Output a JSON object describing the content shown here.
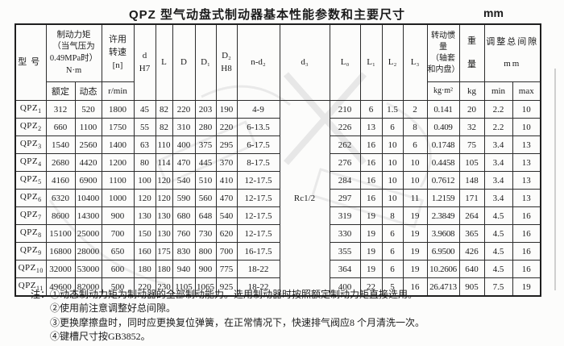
{
  "title": "QPZ 型气动盘式制动器基本性能参数和主要尺寸",
  "unit": "mm",
  "table": {
    "headers": {
      "model": "型号",
      "torque": "制动力矩\n（当气压为\n0.49MPa时）\nN·m",
      "rated": "额定",
      "dynamic": "动态",
      "speed": "许用\n转速\n[n]",
      "speed_unit": "r/min",
      "d": "d\nH7",
      "L": "L",
      "D": "D",
      "D1": "D₁",
      "D2": "D₂\nH8",
      "nd2": "n-d₂",
      "d3": "d₃",
      "L0": "L₀",
      "L1": "L₁",
      "L2": "L₂",
      "L3": "L₃",
      "inertia": "转动惯量\n（轴套\n和内盘）",
      "inertia_unit": "kg·m²",
      "weight": "重\n量",
      "weight_unit": "kg",
      "gap": "调整总间隙\nmm",
      "gap_min": "min",
      "gap_max": "max"
    },
    "d3_value": "Rc1/2",
    "rows": [
      {
        "model": "QPZ",
        "sub": "1",
        "values": [
          "312",
          "520",
          "1800",
          "45",
          "82",
          "220",
          "203",
          "190",
          "4-9",
          "210",
          "6",
          "1.5",
          "2",
          "0.141",
          "20",
          "2.2",
          "10"
        ]
      },
      {
        "model": "QPZ",
        "sub": "2",
        "values": [
          "660",
          "1100",
          "1750",
          "55",
          "82",
          "310",
          "280",
          "220",
          "6-13.5",
          "226",
          "13",
          "6",
          "8",
          "0.409",
          "32",
          "2.2",
          "10"
        ]
      },
      {
        "model": "QPZ",
        "sub": "3",
        "values": [
          "1540",
          "2560",
          "1400",
          "63",
          "110",
          "400",
          "375",
          "295",
          "6-17.5",
          "262",
          "16",
          "10",
          "6",
          "0.1748",
          "75",
          "3.4",
          "13"
        ]
      },
      {
        "model": "QPZ",
        "sub": "4",
        "values": [
          "2680",
          "4420",
          "1200",
          "80",
          "114",
          "470",
          "445",
          "370",
          "8-17.5",
          "276",
          "16",
          "10",
          "10",
          "0.4458",
          "105",
          "3.4",
          "13"
        ]
      },
      {
        "model": "QPZ",
        "sub": "5",
        "values": [
          "4160",
          "6900",
          "1100",
          "100",
          "120",
          "540",
          "510",
          "410",
          "12-17.5",
          "284",
          "16",
          "10",
          "10",
          "0.7612",
          "148",
          "3.4",
          "13"
        ]
      },
      {
        "model": "QPZ",
        "sub": "6",
        "values": [
          "6320",
          "10400",
          "1000",
          "120",
          "120",
          "590",
          "560",
          "470",
          "12-17.5",
          "297",
          "16",
          "10",
          "11",
          "1.2159",
          "171",
          "3.4",
          "13"
        ]
      },
      {
        "model": "QPZ",
        "sub": "7",
        "values": [
          "8600",
          "14300",
          "900",
          "130",
          "130",
          "680",
          "648",
          "540",
          "12-17.5",
          "319",
          "19",
          "8",
          "19",
          "2.3849",
          "264",
          "4.5",
          "16"
        ]
      },
      {
        "model": "QPZ",
        "sub": "8",
        "values": [
          "15100",
          "25000",
          "700",
          "150",
          "130",
          "760",
          "730",
          "620",
          "12-17.5",
          "330",
          "19",
          "6",
          "19",
          "3.9608",
          "365",
          "4.5",
          "16"
        ]
      },
      {
        "model": "QPZ",
        "sub": "9",
        "values": [
          "16800",
          "28000",
          "650",
          "160",
          "175",
          "830",
          "800",
          "700",
          "16-17.5",
          "355",
          "19",
          "6",
          "19",
          "6.9500",
          "426",
          "4.5",
          "16"
        ]
      },
      {
        "model": "QPZ",
        "sub": "10",
        "values": [
          "32000",
          "53000",
          "600",
          "180",
          "180",
          "940",
          "900",
          "775",
          "18-22",
          "364",
          "19",
          "6",
          "19",
          "10.2606",
          "640",
          "4.5",
          "16"
        ]
      },
      {
        "model": "QPZ",
        "sub": "11",
        "values": [
          "49600",
          "82000",
          "500",
          "220",
          "230",
          "1105",
          "1065",
          "925",
          "18-22",
          "400",
          "22",
          "5",
          "16",
          "26.4713",
          "905",
          "7.5",
          "19"
        ]
      }
    ]
  },
  "notes": {
    "label": "注：",
    "items": [
      "①动态制动力矩为制动器的全部制动能力。选用制动器时按照额定制动力矩直接选用。",
      "②使用前注意调整好总间隙。",
      "③更换摩擦盘时，同时应更换复位弹簧，在正常情况下，快速排气阀应8 个月清洗一次。",
      "④键槽尺寸按GB3852。"
    ]
  }
}
